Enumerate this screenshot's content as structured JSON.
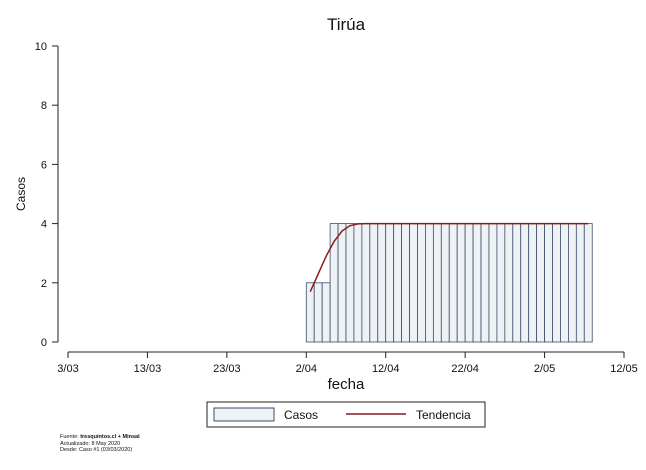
{
  "chart_data": {
    "type": "bar",
    "title": "Tirúa",
    "xlabel": "fecha",
    "ylabel": "Casos",
    "ylim": [
      0,
      10
    ],
    "yticks": [
      "0",
      "2",
      "4",
      "6",
      "8",
      "10"
    ],
    "x_tick_labels": [
      "3/03",
      "13/03",
      "23/03",
      "2/04",
      "12/04",
      "22/04",
      "2/05",
      "12/05"
    ],
    "x_range_days": [
      0,
      70
    ],
    "start_date": "2020-03-03",
    "categories": [
      "2/04",
      "3/04",
      "4/04",
      "5/04",
      "6/04",
      "7/04",
      "8/04",
      "9/04",
      "10/04",
      "11/04",
      "12/04",
      "13/04",
      "14/04",
      "15/04",
      "16/04",
      "17/04",
      "18/04",
      "19/04",
      "20/04",
      "21/04",
      "22/04",
      "23/04",
      "24/04",
      "25/04",
      "26/04",
      "27/04",
      "28/04",
      "29/04",
      "30/04",
      "1/05",
      "2/05",
      "3/05",
      "4/05",
      "5/05",
      "6/05",
      "7/05"
    ],
    "series": [
      {
        "name": "Casos",
        "values": [
          2,
          2,
          2,
          4,
          4,
          4,
          4,
          4,
          4,
          4,
          4,
          4,
          4,
          4,
          4,
          4,
          4,
          4,
          4,
          4,
          4,
          4,
          4,
          4,
          4,
          4,
          4,
          4,
          4,
          4,
          4,
          4,
          4,
          4,
          4,
          4
        ]
      },
      {
        "name": "Tendencia",
        "values": [
          1.7,
          2.3,
          2.9,
          3.4,
          3.75,
          3.93,
          3.99,
          4,
          4,
          4,
          4,
          4,
          4,
          4,
          4,
          4,
          4,
          4,
          4,
          4,
          4,
          4,
          4,
          4,
          4,
          4,
          4,
          4,
          4,
          4,
          4,
          4,
          4,
          4,
          4,
          4
        ]
      }
    ],
    "legend_position": "bottom",
    "grid": false,
    "colors": {
      "bar_fill": "#eef2f5",
      "bar_stroke": "#3b4f6b",
      "trend": "#8b1a1a"
    }
  },
  "legend": {
    "bar_label": "Casos",
    "line_label": "Tendencia"
  },
  "footer": {
    "source_prefix": "Fuente: ",
    "source_bold": "tresquintos.cl + Minsal",
    "updated": "Actualizado: 8 May 2020",
    "since": "Desde: Caso #1  (03/03/2020)"
  }
}
